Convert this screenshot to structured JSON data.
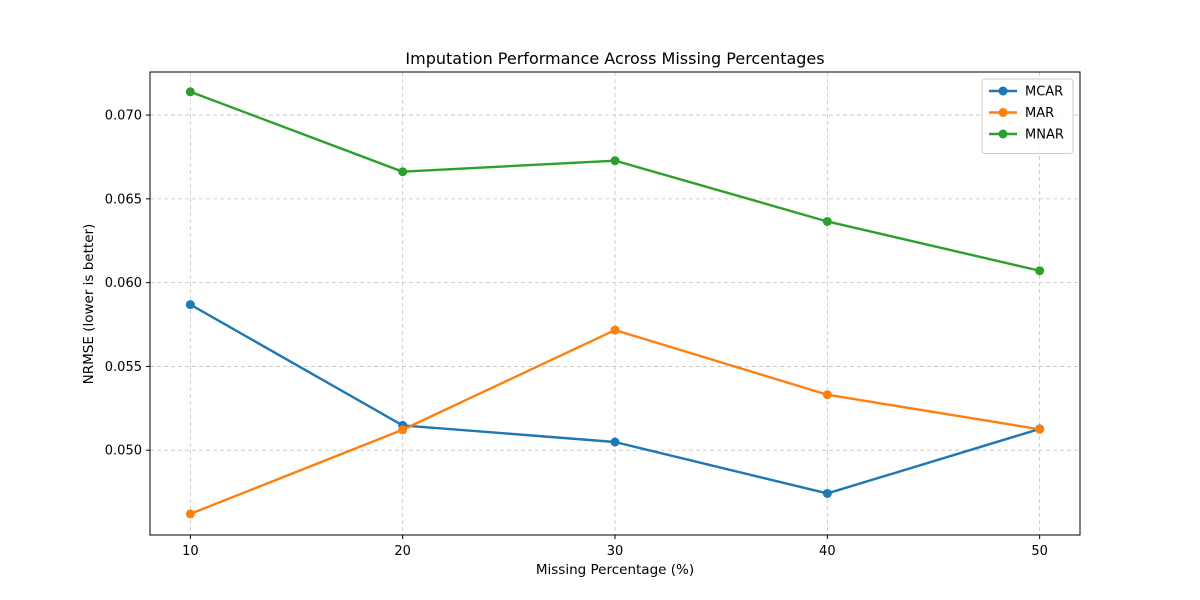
{
  "chart_data": {
    "type": "line",
    "title": "Imputation Performance Across Missing Percentages",
    "xlabel": "Missing Percentage (%)",
    "ylabel": "NRMSE (lower is better)",
    "x": [
      10,
      20,
      30,
      40,
      50
    ],
    "x_ticks": [
      "10",
      "20",
      "30",
      "40",
      "50"
    ],
    "xlim": [
      8.1,
      51.9
    ],
    "ylim": [
      0.04494,
      0.07257
    ],
    "y_ticks": [
      0.05,
      0.055,
      0.06,
      0.065,
      0.07
    ],
    "y_tick_labels": [
      "0.050",
      "0.055",
      "0.060",
      "0.065",
      "0.070"
    ],
    "grid": true,
    "legend_position": "top-right",
    "series": [
      {
        "name": "MCAR",
        "color": "#1f77b4",
        "values": [
          0.05869,
          0.05148,
          0.05049,
          0.04742,
          0.05127
        ]
      },
      {
        "name": "MAR",
        "color": "#ff7f0e",
        "values": [
          0.0462,
          0.05122,
          0.05717,
          0.05331,
          0.05125
        ]
      },
      {
        "name": "MNAR",
        "color": "#2ca02c",
        "values": [
          0.07139,
          0.06662,
          0.06728,
          0.06365,
          0.06071
        ]
      }
    ]
  }
}
